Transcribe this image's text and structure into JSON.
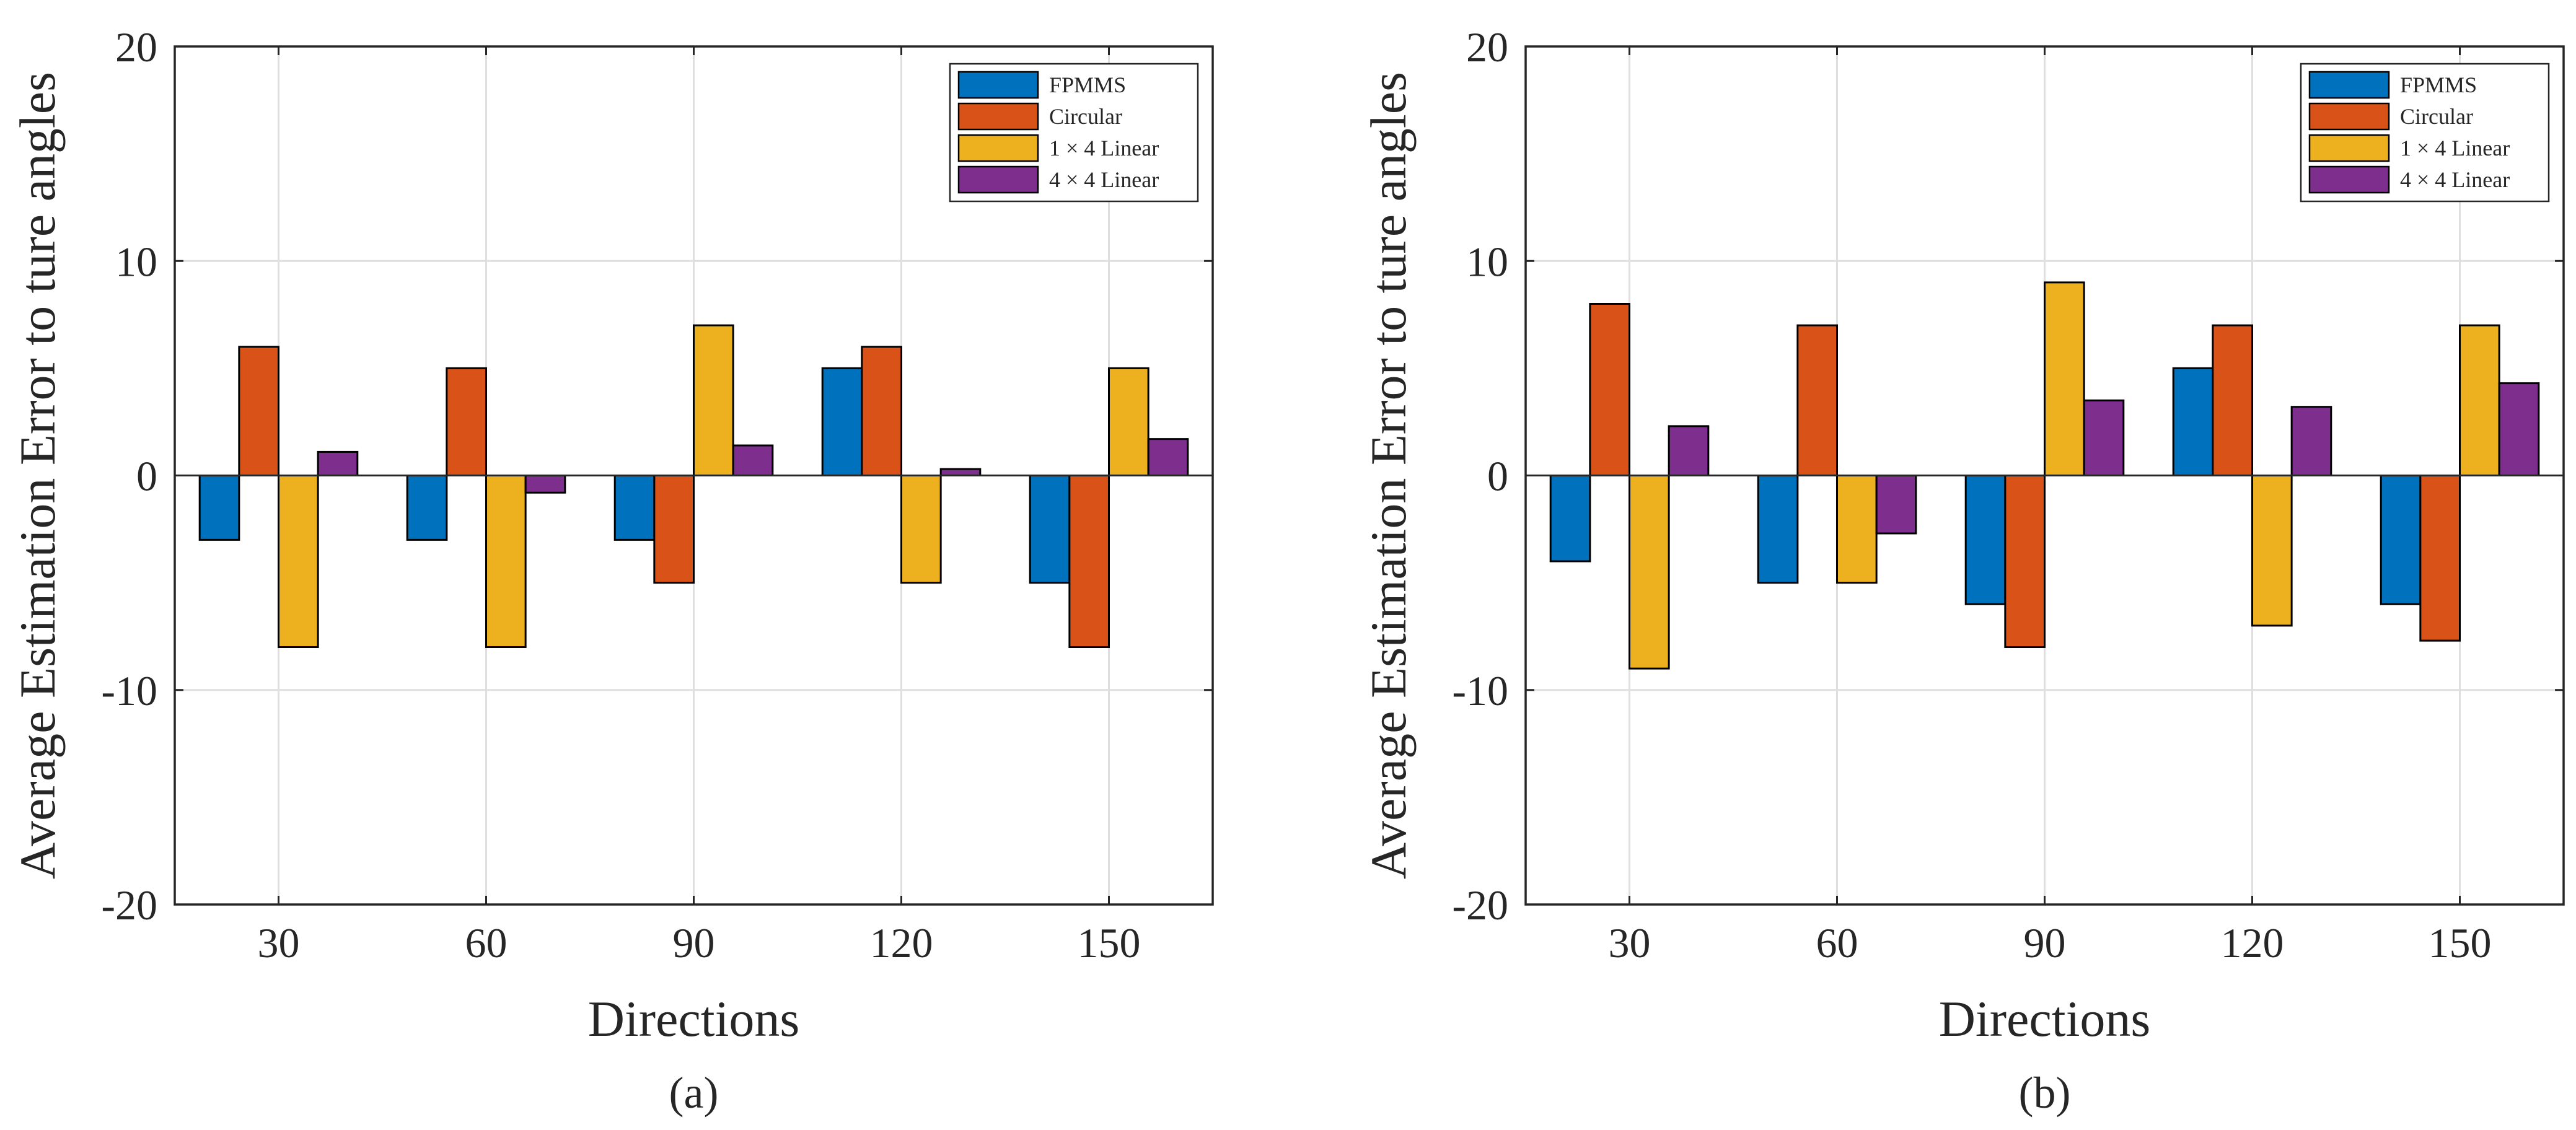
{
  "chart_data": [
    {
      "type": "bar",
      "panel_label": "(a)",
      "xlabel": "Directions",
      "ylabel": "Average Estimation Error to ture angles",
      "categories": [
        "30",
        "60",
        "90",
        "120",
        "150"
      ],
      "ylim": [
        -20,
        20
      ],
      "yticks": [
        "-20",
        "-10",
        "0",
        "10",
        "20"
      ],
      "ytick_values": [
        -20,
        -10,
        0,
        10,
        20
      ],
      "grid": true,
      "legend_position": "top-right",
      "series": [
        {
          "name": "FPMMS",
          "color": "#0072BD",
          "values": [
            -3,
            -3,
            -3,
            5,
            -5
          ]
        },
        {
          "name": "Circular",
          "color": "#D95319",
          "values": [
            6,
            5,
            -5,
            6,
            -8
          ]
        },
        {
          "name": "1 × 4 Linear",
          "color": "#EDB120",
          "values": [
            -8,
            -8,
            7,
            -5,
            5
          ]
        },
        {
          "name": "4 × 4 Linear",
          "color": "#7E2F8E",
          "values": [
            1.1,
            -0.8,
            1.4,
            0.3,
            1.7
          ]
        }
      ]
    },
    {
      "type": "bar",
      "panel_label": "(b)",
      "xlabel": "Directions",
      "ylabel": "Average Estimation Error to ture angles",
      "categories": [
        "30",
        "60",
        "90",
        "120",
        "150"
      ],
      "ylim": [
        -20,
        20
      ],
      "yticks": [
        "-20",
        "-10",
        "0",
        "10",
        "20"
      ],
      "ytick_values": [
        -20,
        -10,
        0,
        10,
        20
      ],
      "grid": true,
      "legend_position": "top-right",
      "series": [
        {
          "name": "FPMMS",
          "color": "#0072BD",
          "values": [
            -4,
            -5,
            -6,
            5,
            -6
          ]
        },
        {
          "name": "Circular",
          "color": "#D95319",
          "values": [
            8,
            7,
            -8,
            7,
            -7.7
          ]
        },
        {
          "name": "1 × 4 Linear",
          "color": "#EDB120",
          "values": [
            -9,
            -5,
            9,
            -7,
            7
          ]
        },
        {
          "name": "4 × 4 Linear",
          "color": "#7E2F8E",
          "values": [
            2.3,
            -2.7,
            3.5,
            3.2,
            4.3
          ]
        }
      ]
    }
  ]
}
